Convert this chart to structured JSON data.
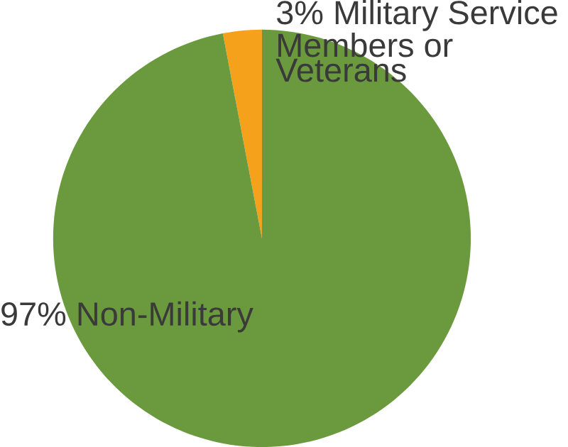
{
  "chart_data": {
    "type": "pie",
    "categories": [
      "Military Service Members or Veterans",
      "Non-Military"
    ],
    "values": [
      3,
      97
    ],
    "value_labels": [
      "3%",
      "97%"
    ],
    "colors": [
      "#f6a11c",
      "#6b9a3e"
    ]
  }
}
